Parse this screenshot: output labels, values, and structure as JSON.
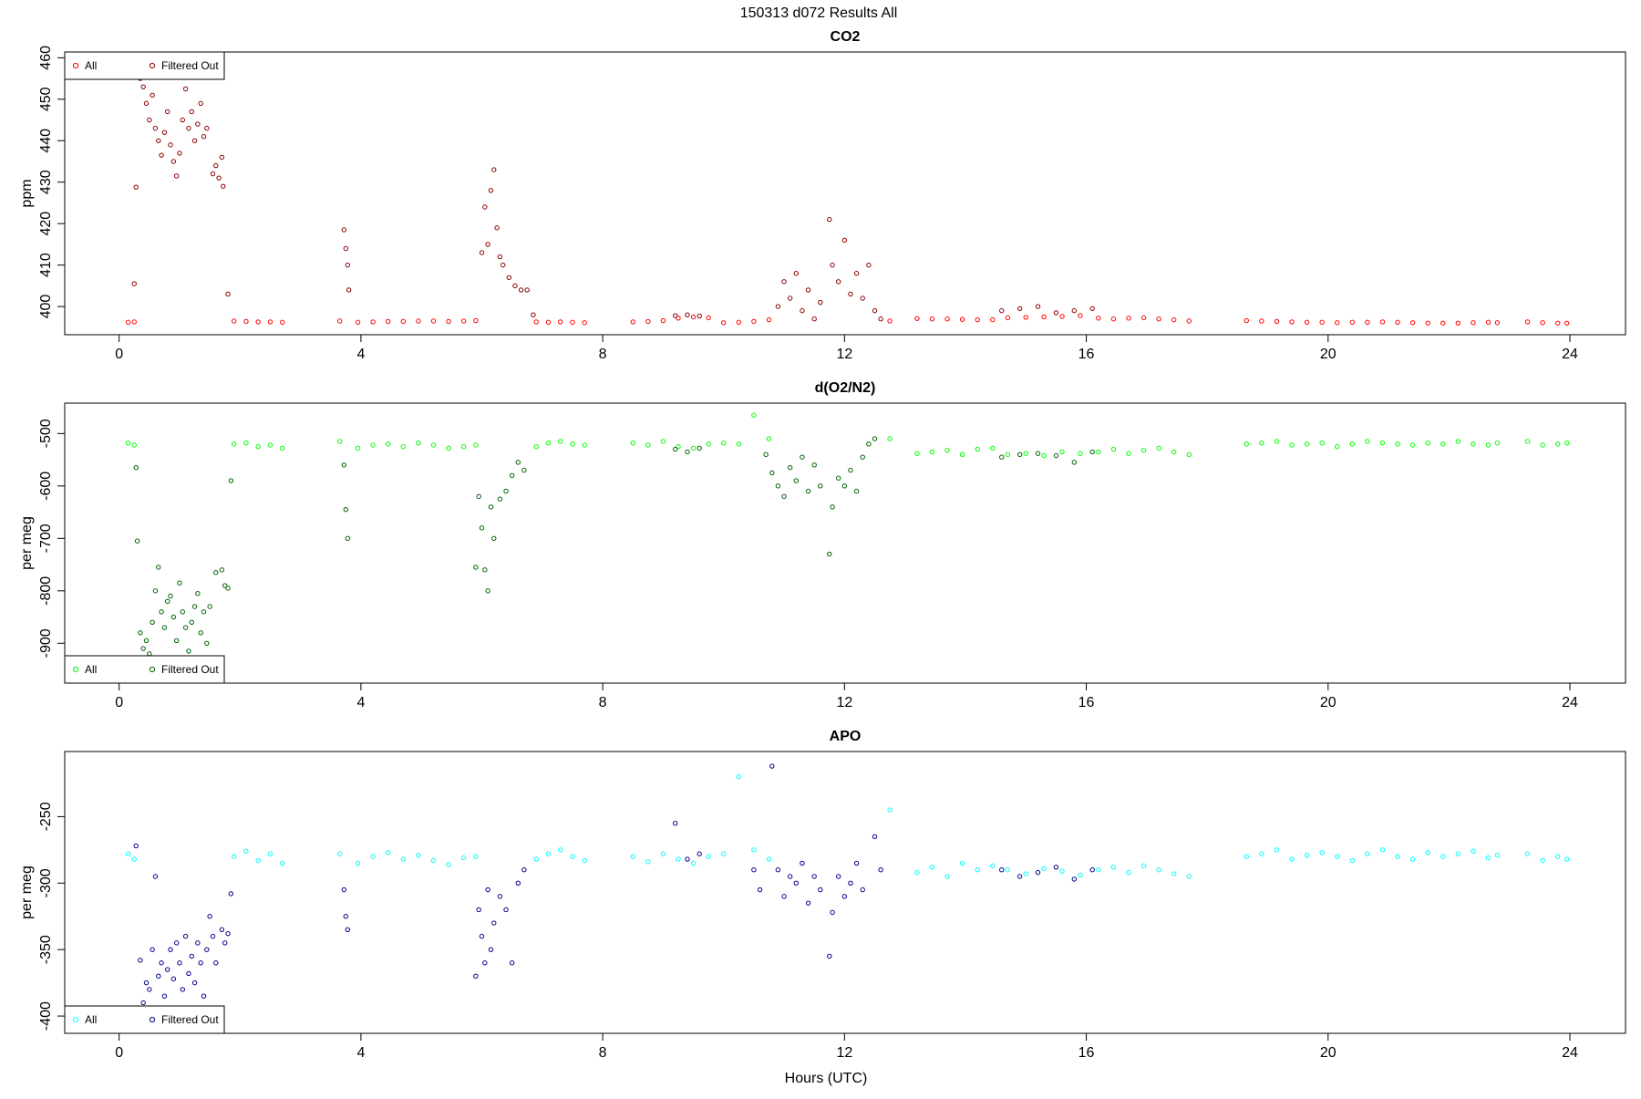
{
  "title": "150313   d072   Results All",
  "chart_data": [
    {
      "type": "scatter",
      "title": "CO2",
      "y_label": "ppm",
      "legend": "top-left",
      "xlim": [
        -0.9,
        24.92
      ],
      "xticks": [
        0,
        4,
        8,
        12,
        16,
        20,
        24
      ],
      "ylim": [
        393.2,
        461.4
      ],
      "yticks": [
        400,
        410,
        420,
        430,
        440,
        450,
        460
      ],
      "series": [
        {
          "name": "All",
          "color": "#ff0000",
          "x": [
            0.15,
            0.25,
            1.9,
            2.1,
            2.3,
            2.5,
            2.7,
            3.65,
            3.95,
            4.2,
            4.45,
            4.7,
            4.95,
            5.2,
            5.45,
            5.7,
            5.9,
            6.9,
            7.1,
            7.3,
            7.5,
            7.7,
            8.5,
            8.75,
            9.0,
            9.25,
            9.5,
            9.75,
            10.0,
            10.25,
            10.5,
            10.75,
            12.75,
            13.2,
            13.45,
            13.7,
            13.95,
            14.2,
            14.45,
            14.7,
            15.0,
            15.3,
            15.6,
            15.9,
            16.2,
            16.45,
            16.7,
            16.95,
            17.2,
            17.45,
            17.7,
            18.65,
            18.9,
            19.15,
            19.4,
            19.65,
            19.9,
            20.15,
            20.4,
            20.65,
            20.9,
            21.15,
            21.4,
            21.65,
            21.9,
            22.15,
            22.4,
            22.65,
            22.8,
            23.3,
            23.55,
            23.8,
            23.95
          ],
          "values": [
            396.2,
            396.3,
            396.5,
            396.4,
            396.3,
            396.3,
            396.2,
            396.5,
            396.2,
            396.3,
            396.4,
            396.4,
            396.5,
            396.5,
            396.4,
            396.5,
            396.6,
            396.3,
            396.2,
            396.3,
            396.2,
            396.1,
            396.3,
            396.4,
            396.6,
            397.2,
            397.5,
            397.3,
            396.1,
            396.2,
            396.4,
            396.8,
            396.5,
            397.1,
            397.0,
            397.0,
            396.9,
            396.8,
            396.8,
            397.3,
            397.4,
            397.5,
            397.6,
            397.8,
            397.2,
            397.0,
            397.2,
            397.3,
            397.0,
            396.8,
            396.5,
            396.6,
            396.5,
            396.4,
            396.3,
            396.2,
            396.2,
            396.1,
            396.2,
            396.2,
            396.3,
            396.2,
            396.1,
            396.0,
            396.0,
            396.0,
            396.1,
            396.2,
            396.1,
            396.3,
            396.1,
            396.0,
            396.0
          ]
        },
        {
          "name": "Filtered Out",
          "color": "#8b0000",
          "x": [
            0.25,
            0.28,
            0.35,
            0.4,
            0.45,
            0.5,
            0.55,
            0.6,
            0.65,
            0.7,
            0.75,
            0.8,
            0.85,
            0.9,
            0.95,
            1.0,
            1.05,
            1.1,
            1.15,
            1.2,
            1.25,
            1.3,
            1.35,
            1.4,
            1.45,
            1.55,
            1.6,
            1.65,
            1.7,
            1.72,
            1.8,
            3.72,
            3.75,
            3.78,
            3.8,
            6.0,
            6.05,
            6.1,
            6.15,
            6.2,
            6.25,
            6.3,
            6.35,
            6.45,
            6.55,
            6.65,
            6.75,
            6.85,
            9.2,
            9.4,
            9.6,
            10.9,
            11.0,
            11.1,
            11.2,
            11.3,
            11.4,
            11.5,
            11.6,
            11.75,
            11.8,
            11.9,
            12.0,
            12.1,
            12.2,
            12.3,
            12.4,
            12.5,
            12.6,
            14.6,
            14.9,
            15.2,
            15.5,
            15.8,
            16.1
          ],
          "values": [
            405.5,
            428.8,
            455,
            453,
            449,
            445,
            451,
            443,
            440,
            436.5,
            442,
            447,
            439,
            435,
            431.5,
            437,
            445,
            452.5,
            443,
            447,
            440,
            444,
            449,
            441,
            443,
            432,
            434,
            431,
            436,
            429,
            403,
            418.5,
            414,
            410,
            404,
            413,
            424,
            415,
            428,
            433,
            419,
            412,
            410,
            407,
            405,
            404,
            404,
            398,
            397.8,
            398,
            397.7,
            400,
            406,
            402,
            408,
            399,
            404,
            397,
            401,
            421,
            410,
            406,
            416,
            403,
            408,
            402,
            410,
            399,
            397,
            399,
            399.5,
            400,
            398.5,
            399,
            399.5
          ]
        }
      ]
    },
    {
      "type": "scatter",
      "title": "d(O2/N2)",
      "y_label": "per meg",
      "legend": "bottom-left",
      "xlim": [
        -0.9,
        24.92
      ],
      "xticks": [
        0,
        4,
        8,
        12,
        16,
        20,
        24
      ],
      "ylim": [
        -976,
        -442
      ],
      "yticks": [
        -900,
        -800,
        -700,
        -600,
        -500
      ],
      "series": [
        {
          "name": "All",
          "color": "#00ff00",
          "x": [
            0.15,
            0.25,
            1.9,
            2.1,
            2.3,
            2.5,
            2.7,
            3.65,
            3.95,
            4.2,
            4.45,
            4.7,
            4.95,
            5.2,
            5.45,
            5.7,
            5.9,
            6.9,
            7.1,
            7.3,
            7.5,
            7.7,
            8.5,
            8.75,
            9.0,
            9.25,
            9.5,
            9.75,
            10.0,
            10.25,
            10.5,
            10.75,
            12.75,
            13.2,
            13.45,
            13.7,
            13.95,
            14.2,
            14.45,
            14.7,
            15.0,
            15.3,
            15.6,
            15.9,
            16.2,
            16.45,
            16.7,
            16.95,
            17.2,
            17.45,
            17.7,
            18.65,
            18.9,
            19.15,
            19.4,
            19.65,
            19.9,
            20.15,
            20.4,
            20.65,
            20.9,
            21.15,
            21.4,
            21.65,
            21.9,
            22.15,
            22.4,
            22.65,
            22.8,
            23.3,
            23.55,
            23.8,
            23.95
          ],
          "values": [
            -518,
            -522,
            -520,
            -518,
            -525,
            -522,
            -528,
            -515,
            -528,
            -522,
            -520,
            -525,
            -518,
            -522,
            -528,
            -525,
            -522,
            -525,
            -518,
            -515,
            -520,
            -522,
            -518,
            -522,
            -515,
            -525,
            -528,
            -520,
            -518,
            -520,
            -465,
            -510,
            -510,
            -538,
            -535,
            -532,
            -540,
            -530,
            -528,
            -540,
            -538,
            -542,
            -535,
            -538,
            -535,
            -530,
            -538,
            -532,
            -528,
            -535,
            -540,
            -520,
            -518,
            -515,
            -522,
            -520,
            -518,
            -525,
            -520,
            -515,
            -518,
            -520,
            -522,
            -518,
            -520,
            -515,
            -520,
            -522,
            -518,
            -515,
            -522,
            -520,
            -518
          ]
        },
        {
          "name": "Filtered Out",
          "color": "#006400",
          "x": [
            0.28,
            0.3,
            0.35,
            0.4,
            0.45,
            0.5,
            0.55,
            0.6,
            0.65,
            0.7,
            0.75,
            0.8,
            0.85,
            0.9,
            0.95,
            1.0,
            1.05,
            1.1,
            1.15,
            1.2,
            1.25,
            1.3,
            1.35,
            1.4,
            1.45,
            1.5,
            1.6,
            1.7,
            1.75,
            1.8,
            1.85,
            3.72,
            3.75,
            3.78,
            5.9,
            5.95,
            6.0,
            6.05,
            6.1,
            6.15,
            6.2,
            6.3,
            6.4,
            6.5,
            6.6,
            6.7,
            9.2,
            9.4,
            9.6,
            10.7,
            10.8,
            10.9,
            11.0,
            11.1,
            11.2,
            11.3,
            11.4,
            11.5,
            11.6,
            11.75,
            11.8,
            11.9,
            12.0,
            12.1,
            12.2,
            12.3,
            12.4,
            12.5,
            14.6,
            14.9,
            15.2,
            15.5,
            15.8,
            16.1
          ],
          "values": [
            -565,
            -705,
            -880,
            -910,
            -895,
            -920,
            -860,
            -800,
            -755,
            -840,
            -870,
            -820,
            -810,
            -850,
            -895,
            -785,
            -840,
            -870,
            -915,
            -860,
            -830,
            -805,
            -880,
            -840,
            -900,
            -830,
            -765,
            -760,
            -790,
            -795,
            -590,
            -560,
            -645,
            -700,
            -755,
            -620,
            -680,
            -760,
            -800,
            -640,
            -700,
            -625,
            -610,
            -580,
            -555,
            -570,
            -530,
            -535,
            -528,
            -540,
            -575,
            -600,
            -620,
            -565,
            -590,
            -545,
            -610,
            -560,
            -600,
            -730,
            -640,
            -585,
            -600,
            -570,
            -610,
            -545,
            -520,
            -510,
            -545,
            -540,
            -538,
            -542,
            -555,
            -535
          ]
        }
      ]
    },
    {
      "type": "scatter",
      "title": "APO",
      "y_label": "per meg",
      "x_label": "Hours (UTC)",
      "legend": "bottom-left",
      "xlim": [
        -0.9,
        24.92
      ],
      "xticks": [
        0,
        4,
        8,
        12,
        16,
        20,
        24
      ],
      "ylim": [
        -413,
        -201
      ],
      "yticks": [
        -400,
        -350,
        -300,
        -250
      ],
      "series": [
        {
          "name": "All",
          "color": "#00ffff",
          "x": [
            0.15,
            0.25,
            1.9,
            2.1,
            2.3,
            2.5,
            2.7,
            3.65,
            3.95,
            4.2,
            4.45,
            4.7,
            4.95,
            5.2,
            5.45,
            5.7,
            5.9,
            6.9,
            7.1,
            7.3,
            7.5,
            7.7,
            8.5,
            8.75,
            9.0,
            9.25,
            9.5,
            9.75,
            10.0,
            10.25,
            10.5,
            10.75,
            12.75,
            13.2,
            13.45,
            13.7,
            13.95,
            14.2,
            14.45,
            14.7,
            15.0,
            15.3,
            15.6,
            15.9,
            16.2,
            16.45,
            16.7,
            16.95,
            17.2,
            17.45,
            17.7,
            18.65,
            18.9,
            19.15,
            19.4,
            19.65,
            19.9,
            20.15,
            20.4,
            20.65,
            20.9,
            21.15,
            21.4,
            21.65,
            21.9,
            22.15,
            22.4,
            22.65,
            22.8,
            23.3,
            23.55,
            23.8,
            23.95
          ],
          "values": [
            -278,
            -282,
            -280,
            -276,
            -283,
            -278,
            -285,
            -278,
            -285,
            -280,
            -277,
            -282,
            -279,
            -283,
            -286,
            -281,
            -280,
            -282,
            -278,
            -275,
            -280,
            -283,
            -280,
            -284,
            -278,
            -282,
            -285,
            -280,
            -278,
            -220,
            -275,
            -282,
            -245,
            -292,
            -288,
            -295,
            -285,
            -290,
            -287,
            -290,
            -293,
            -289,
            -291,
            -294,
            -290,
            -288,
            -292,
            -287,
            -290,
            -293,
            -295,
            -280,
            -278,
            -275,
            -282,
            -279,
            -277,
            -280,
            -283,
            -278,
            -275,
            -280,
            -282,
            -277,
            -280,
            -278,
            -276,
            -281,
            -279,
            -278,
            -283,
            -280,
            -282
          ]
        },
        {
          "name": "Filtered Out",
          "color": "#00008b",
          "x": [
            0.28,
            0.35,
            0.4,
            0.45,
            0.5,
            0.55,
            0.6,
            0.65,
            0.7,
            0.75,
            0.8,
            0.85,
            0.9,
            0.95,
            1.0,
            1.05,
            1.1,
            1.15,
            1.2,
            1.25,
            1.3,
            1.35,
            1.4,
            1.45,
            1.5,
            1.55,
            1.6,
            1.7,
            1.75,
            1.8,
            1.85,
            3.72,
            3.75,
            3.78,
            5.9,
            5.95,
            6.0,
            6.05,
            6.1,
            6.15,
            6.2,
            6.3,
            6.4,
            6.5,
            6.6,
            6.7,
            9.2,
            9.4,
            9.6,
            10.5,
            10.6,
            10.8,
            10.9,
            11.0,
            11.1,
            11.2,
            11.3,
            11.4,
            11.5,
            11.6,
            11.75,
            11.8,
            11.9,
            12.0,
            12.1,
            12.2,
            12.3,
            12.5,
            12.6,
            14.6,
            14.9,
            15.2,
            15.5,
            15.8,
            16.1
          ],
          "values": [
            -272,
            -358,
            -390,
            -375,
            -380,
            -350,
            -295,
            -370,
            -360,
            -385,
            -365,
            -350,
            -372,
            -345,
            -360,
            -380,
            -340,
            -368,
            -355,
            -375,
            -345,
            -360,
            -385,
            -350,
            -325,
            -340,
            -360,
            -335,
            -345,
            -338,
            -308,
            -305,
            -325,
            -335,
            -370,
            -320,
            -340,
            -360,
            -305,
            -350,
            -330,
            -310,
            -320,
            -360,
            -300,
            -290,
            -255,
            -282,
            -278,
            -290,
            -305,
            -212,
            -290,
            -310,
            -295,
            -300,
            -285,
            -315,
            -295,
            -305,
            -355,
            -322,
            -295,
            -310,
            -300,
            -285,
            -305,
            -265,
            -290,
            -290,
            -295,
            -292,
            -288,
            -297,
            -290
          ]
        }
      ]
    }
  ]
}
